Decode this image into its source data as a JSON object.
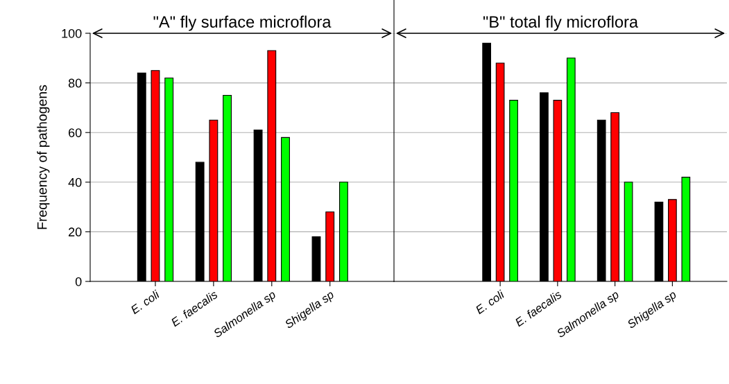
{
  "chart_data": [
    {
      "type": "bar",
      "title": "\"A\" fly surface microflora",
      "ylabel": "Frequency of pathogens",
      "categories": [
        "E. coli",
        "E. faecalis",
        "Salmonella sp",
        "Shigella sp"
      ],
      "series": [
        {
          "color": "#000000",
          "values": [
            84,
            48,
            61,
            18
          ]
        },
        {
          "color": "#ff0000",
          "values": [
            85,
            65,
            93,
            28
          ]
        },
        {
          "color": "#00ff00",
          "values": [
            82,
            75,
            58,
            40
          ]
        }
      ],
      "ylim": [
        0,
        100
      ],
      "yticks": [
        0,
        20,
        40,
        60,
        80,
        100
      ],
      "grid": "y"
    },
    {
      "type": "bar",
      "title": "\"B\" total fly microflora",
      "categories": [
        "E. coli",
        "E. faecalis",
        "Salmonella sp",
        "Shigella sp"
      ],
      "series": [
        {
          "color": "#000000",
          "values": [
            96,
            76,
            65,
            32
          ]
        },
        {
          "color": "#ff0000",
          "values": [
            88,
            73,
            68,
            33
          ]
        },
        {
          "color": "#00ff00",
          "values": [
            73,
            90,
            40,
            42
          ]
        }
      ],
      "ylim": [
        0,
        100
      ],
      "yticks": [
        0,
        20,
        40,
        60,
        80,
        100
      ],
      "grid": "y",
      "tick_labels": "x"
    }
  ]
}
